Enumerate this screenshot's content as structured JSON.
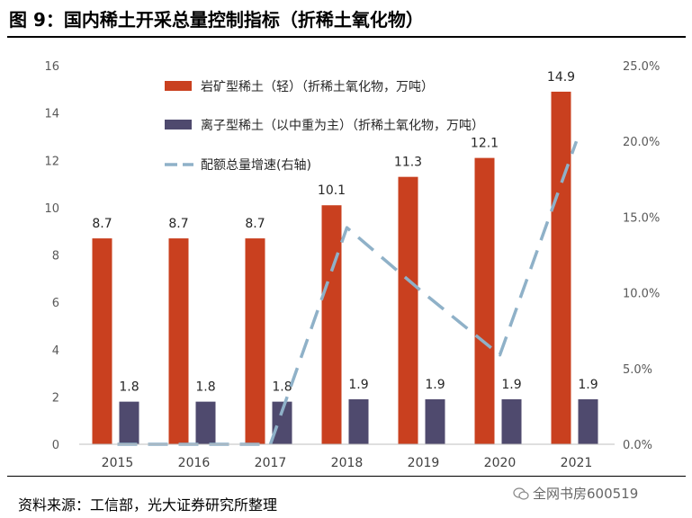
{
  "figure": {
    "title": "图 9：国内稀土开采总量控制指标（折稀土氧化物）",
    "source": "资料来源：工信部，光大证券研究所整理",
    "watermark": "全网书房600519"
  },
  "chart_data": {
    "type": "bar",
    "categories": [
      "2015",
      "2016",
      "2017",
      "2018",
      "2019",
      "2020",
      "2021"
    ],
    "series": [
      {
        "name": "岩矿型稀土（轻）（折稀土氧化物，万吨）",
        "type": "bar",
        "axis": "left",
        "color": "#C9401F",
        "values": [
          8.7,
          8.7,
          8.7,
          10.1,
          11.3,
          12.1,
          14.9
        ],
        "labels": [
          "8.7",
          "8.7",
          "8.7",
          "10.1",
          "11.3",
          "12.1",
          "14.9"
        ]
      },
      {
        "name": "离子型稀土（以中重为主）（折稀土氧化物，万吨）",
        "type": "bar",
        "axis": "left",
        "color": "#4F4A6E",
        "values": [
          1.8,
          1.8,
          1.8,
          1.9,
          1.9,
          1.9,
          1.9
        ],
        "labels": [
          "1.8",
          "1.8",
          "1.8",
          "1.9",
          "1.9",
          "1.9",
          "1.9"
        ]
      },
      {
        "name": "配额总量增速(右轴)",
        "type": "line",
        "style": "dashed",
        "axis": "right",
        "color": "#8FB1C8",
        "values": [
          0.0,
          0.0,
          0.0,
          14.3,
          10.0,
          5.9,
          20.0
        ]
      }
    ],
    "ylim": [
      0,
      16
    ],
    "yticks": [
      "0",
      "2",
      "4",
      "6",
      "8",
      "10",
      "12",
      "14",
      "16"
    ],
    "y2lim": [
      0,
      25
    ],
    "y2ticks": [
      "0.0%",
      "5.0%",
      "10.0%",
      "15.0%",
      "20.0%",
      "25.0%"
    ],
    "legend": "top-left",
    "grid": false
  }
}
